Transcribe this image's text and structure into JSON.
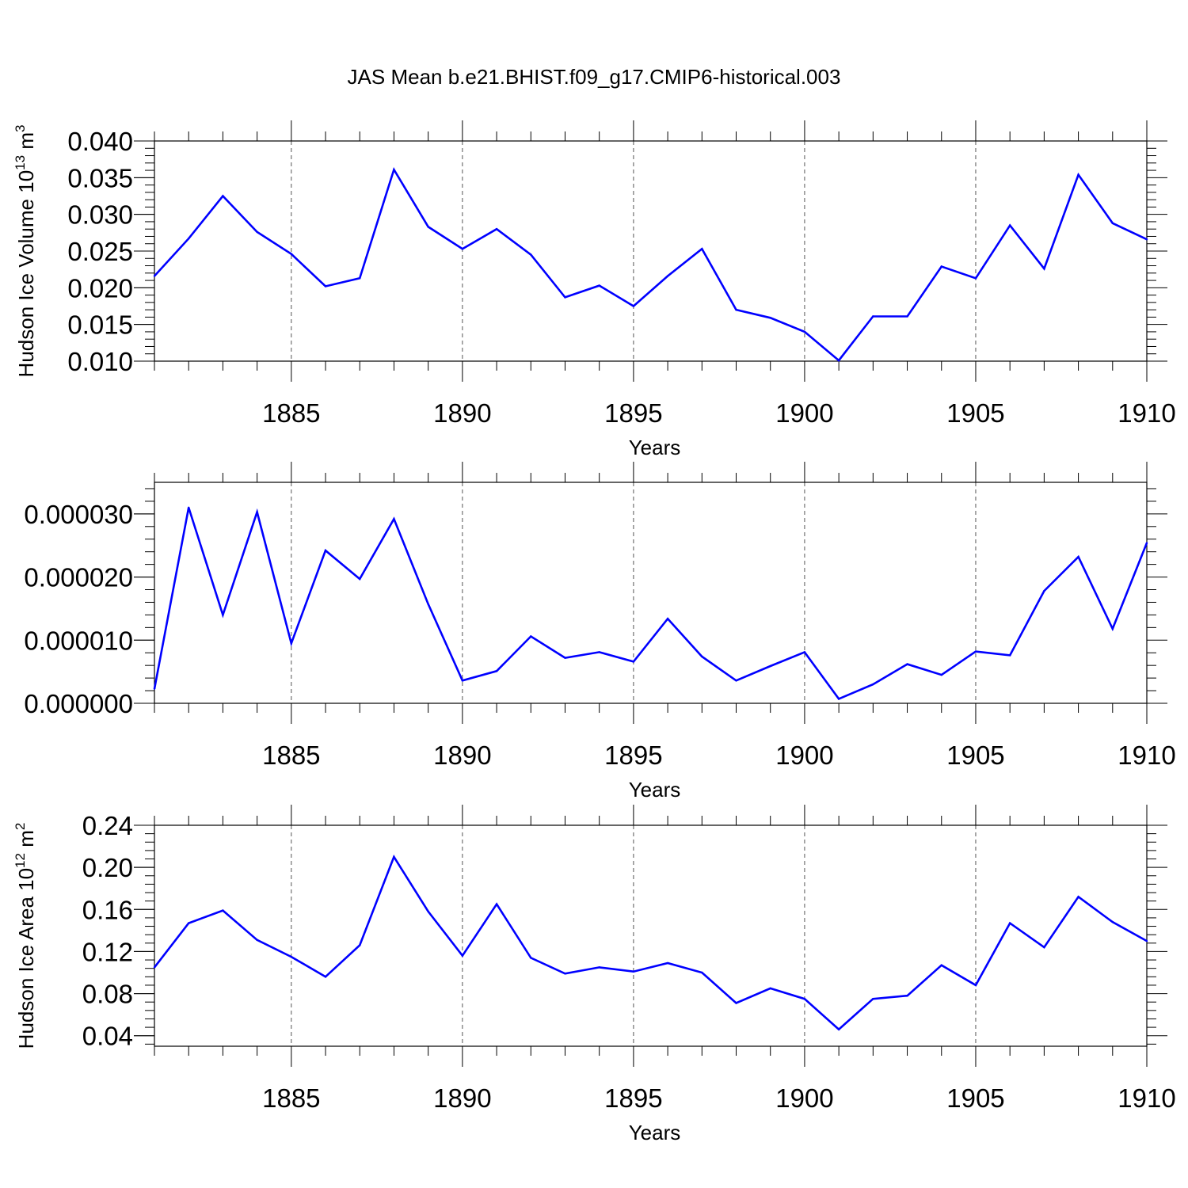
{
  "title": "JAS Mean b.e21.BHIST.f09_g17.CMIP6-historical.003",
  "line_color": "#0000ff",
  "chart_data": [
    {
      "type": "line",
      "ylabel": "Hudson Ice Volume 10",
      "ylabel_exponent": "13",
      "ylabel_unit": " m",
      "ylabel_unit_exponent": "3",
      "xlabel": "Years",
      "xlim": [
        1881,
        1910
      ],
      "ylim": [
        0.01,
        0.04
      ],
      "x_ticks": [
        1885,
        1890,
        1895,
        1900,
        1905,
        1910
      ],
      "y_ticks": [
        0.01,
        0.015,
        0.02,
        0.025,
        0.03,
        0.035,
        0.04
      ],
      "y_tick_labels": [
        "0.010",
        "0.015",
        "0.020",
        "0.025",
        "0.030",
        "0.035",
        "0.040"
      ],
      "x": [
        1881,
        1882,
        1883,
        1884,
        1885,
        1886,
        1887,
        1888,
        1889,
        1890,
        1891,
        1892,
        1893,
        1894,
        1895,
        1896,
        1897,
        1898,
        1899,
        1900,
        1901,
        1902,
        1903,
        1904,
        1905,
        1906,
        1907,
        1908,
        1909,
        1910
      ],
      "y": [
        0.0216,
        0.0267,
        0.0325,
        0.0276,
        0.0246,
        0.0202,
        0.0213,
        0.0361,
        0.0283,
        0.0253,
        0.028,
        0.0245,
        0.0187,
        0.0203,
        0.0175,
        0.0216,
        0.0253,
        0.017,
        0.0159,
        0.014,
        0.0101,
        0.0161,
        0.0161,
        0.0229,
        0.0213,
        0.0285,
        0.0226,
        0.0354,
        0.0288,
        0.0266
      ],
      "grid": "x-dashed"
    },
    {
      "type": "line",
      "ylabel": "",
      "xlabel": "Years",
      "xlim": [
        1881,
        1910
      ],
      "ylim": [
        0.0,
        3.5e-05
      ],
      "x_ticks": [
        1885,
        1890,
        1895,
        1900,
        1905,
        1910
      ],
      "y_ticks": [
        0.0,
        1e-05,
        2e-05,
        3e-05
      ],
      "y_tick_labels": [
        "0.000000",
        "0.000010",
        "0.000020",
        "0.000030"
      ],
      "x": [
        1881,
        1882,
        1883,
        1884,
        1885,
        1886,
        1887,
        1888,
        1889,
        1890,
        1891,
        1892,
        1893,
        1894,
        1895,
        1896,
        1897,
        1898,
        1899,
        1900,
        1901,
        1902,
        1903,
        1904,
        1905,
        1906,
        1907,
        1908,
        1909,
        1910
      ],
      "y": [
        2.3e-06,
        3.1e-05,
        1.4e-05,
        3.03e-05,
        9.5e-06,
        2.42e-05,
        1.97e-05,
        2.92e-05,
        1.57e-05,
        3.6e-06,
        5.1e-06,
        1.06e-05,
        7.2e-06,
        8.1e-06,
        6.6e-06,
        1.34e-05,
        7.4e-06,
        3.6e-06,
        5.9e-06,
        8.1e-06,
        7e-07,
        3e-06,
        6.2e-06,
        4.5e-06,
        8.2e-06,
        7.6e-06,
        1.78e-05,
        2.32e-05,
        1.18e-05,
        2.54e-05
      ],
      "grid": "x-dashed"
    },
    {
      "type": "line",
      "ylabel": "Hudson Ice Area 10",
      "ylabel_exponent": "12",
      "ylabel_unit": " m",
      "ylabel_unit_exponent": "2",
      "xlabel": "Years",
      "xlim": [
        1881,
        1910
      ],
      "ylim": [
        0.03,
        0.24
      ],
      "x_ticks": [
        1885,
        1890,
        1895,
        1900,
        1905,
        1910
      ],
      "y_ticks": [
        0.04,
        0.08,
        0.12,
        0.16,
        0.2,
        0.24
      ],
      "y_tick_labels": [
        "0.04",
        "0.08",
        "0.12",
        "0.16",
        "0.20",
        "0.24"
      ],
      "x": [
        1881,
        1882,
        1883,
        1884,
        1885,
        1886,
        1887,
        1888,
        1889,
        1890,
        1891,
        1892,
        1893,
        1894,
        1895,
        1896,
        1897,
        1898,
        1899,
        1900,
        1901,
        1902,
        1903,
        1904,
        1905,
        1906,
        1907,
        1908,
        1909,
        1910
      ],
      "y": [
        0.105,
        0.147,
        0.159,
        0.131,
        0.115,
        0.096,
        0.126,
        0.21,
        0.158,
        0.116,
        0.165,
        0.114,
        0.099,
        0.105,
        0.101,
        0.109,
        0.1,
        0.071,
        0.085,
        0.075,
        0.046,
        0.075,
        0.078,
        0.107,
        0.088,
        0.147,
        0.124,
        0.172,
        0.148,
        0.13
      ],
      "grid": "x-dashed"
    }
  ]
}
